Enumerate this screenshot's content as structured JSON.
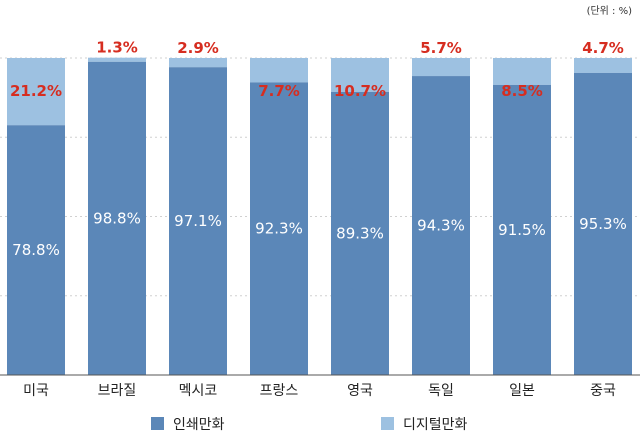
{
  "chart_data": {
    "type": "bar",
    "stacked": true,
    "unit_note": "(단위 : %)",
    "categories": [
      "미국",
      "브라질",
      "멕시코",
      "프랑스",
      "영국",
      "독일",
      "일본",
      "중국"
    ],
    "series": [
      {
        "name": "인쇄만화",
        "values": [
          78.8,
          98.8,
          97.1,
          92.3,
          89.3,
          94.3,
          91.5,
          95.3
        ],
        "labels": [
          "78.8%",
          "98.8%",
          "97.1%",
          "92.3%",
          "89.3%",
          "94.3%",
          "91.5%",
          "95.3%"
        ]
      },
      {
        "name": "디지털만화",
        "values": [
          21.2,
          1.3,
          2.9,
          7.7,
          10.7,
          5.7,
          8.5,
          4.7
        ],
        "labels": [
          "21.2%",
          "1.3%",
          "2.9%",
          "7.7%",
          "10.7%",
          "5.7%",
          "8.5%",
          "4.7%"
        ]
      }
    ],
    "ylim": [
      0,
      100
    ],
    "grid": true,
    "legend_position": "bottom",
    "colors": {
      "print": "#5b87b8",
      "digital": "#9dc1e1",
      "digital_label": "#d62d20",
      "print_label": "#ffffff"
    }
  }
}
